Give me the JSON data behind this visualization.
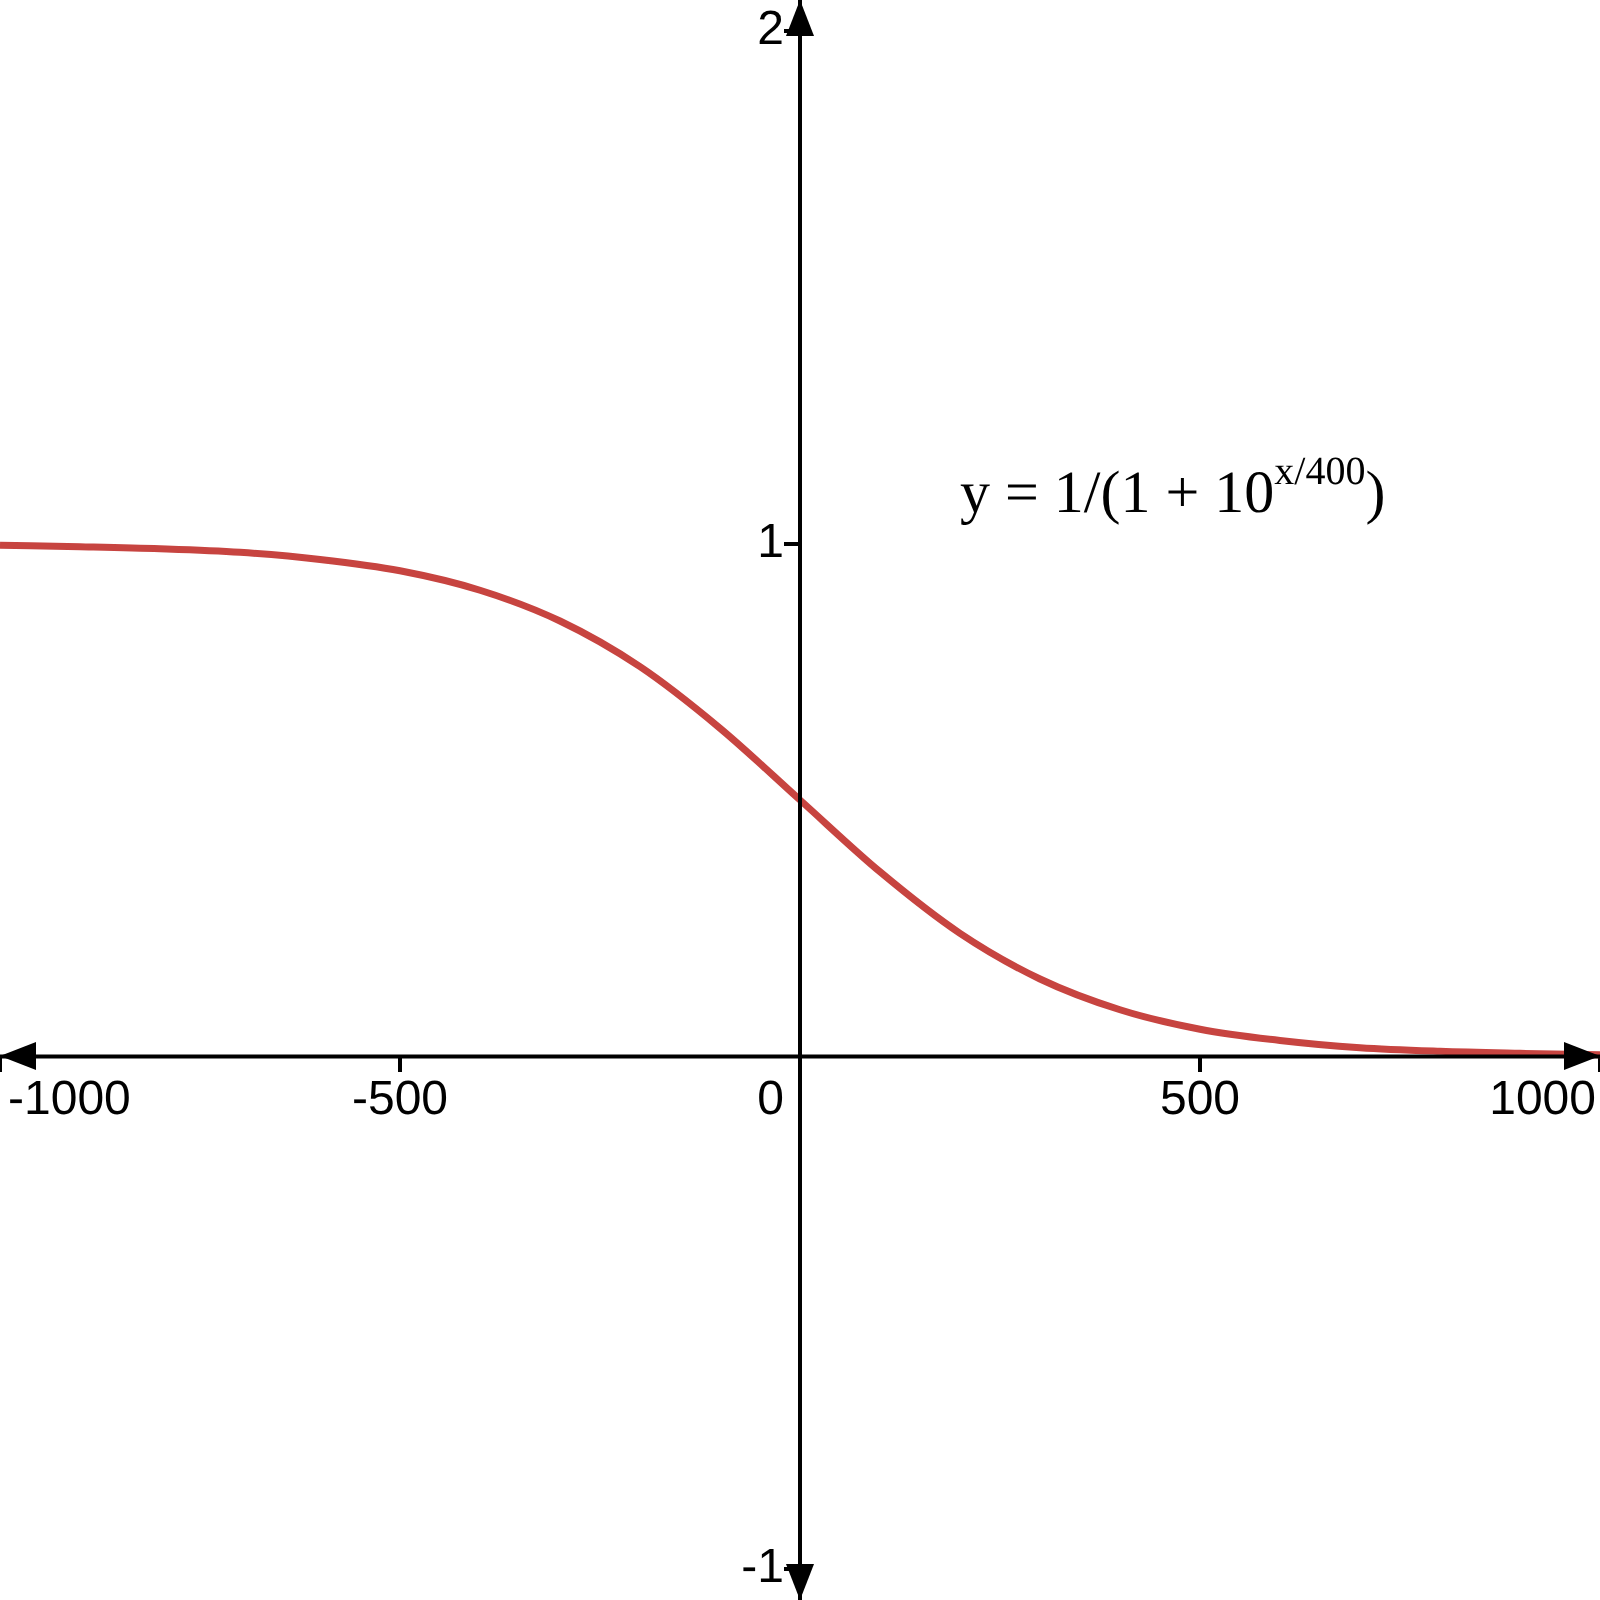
{
  "chart_data": {
    "type": "line",
    "x": [
      -1000,
      -900,
      -800,
      -700,
      -600,
      -500,
      -400,
      -300,
      -200,
      -100,
      0,
      100,
      200,
      300,
      400,
      500,
      600,
      700,
      800,
      900,
      1000
    ],
    "series": [
      {
        "color": "#c74440",
        "values": [
          0.997,
          0.994,
          0.99,
          0.983,
          0.969,
          0.947,
          0.909,
          0.849,
          0.76,
          0.64,
          0.5,
          0.36,
          0.24,
          0.151,
          0.091,
          0.053,
          0.031,
          0.017,
          0.01,
          0.006,
          0.003
        ]
      }
    ],
    "xlim": [
      -1000,
      1000
    ],
    "ylim": [
      -1.06,
      2.06
    ],
    "xticks": [
      -1000,
      -500,
      0,
      500,
      1000
    ],
    "yticks": [
      -1,
      1,
      2
    ],
    "annotations": [
      "y = 1/(1 + 10$^{x/400}$)"
    ],
    "grid": false,
    "legend": false,
    "marker": "none",
    "line_style": "solid"
  }
}
